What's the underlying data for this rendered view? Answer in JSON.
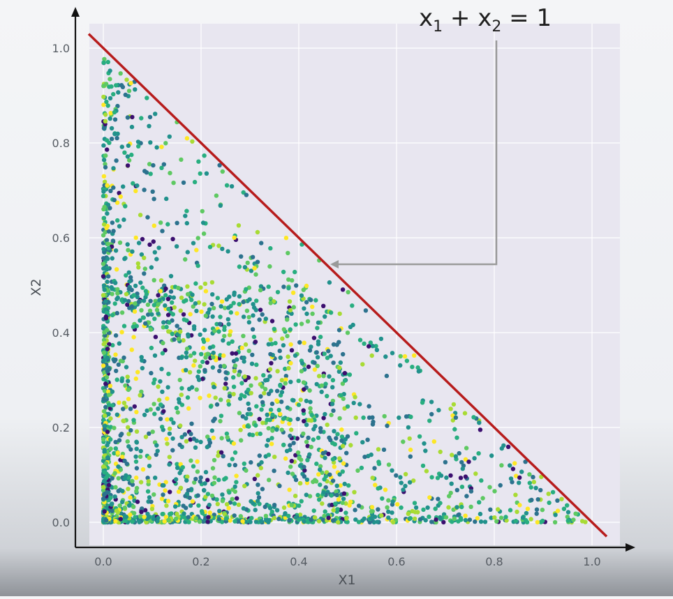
{
  "chart_data": {
    "type": "scatter",
    "title": "",
    "xlabel": "X1",
    "ylabel": "X2",
    "xlim": [
      -0.03,
      1.05
    ],
    "ylim": [
      -0.03,
      1.05
    ],
    "x_ticks": [
      "0.0",
      "0.2",
      "0.4",
      "0.6",
      "0.8",
      "1.0"
    ],
    "y_ticks": [
      "0.0",
      "0.2",
      "0.4",
      "0.6",
      "0.8",
      "1.0"
    ],
    "grid": true,
    "background_color": "#e8e6f0",
    "constraint_line": {
      "label_parts": [
        "x",
        "1",
        " + x",
        "2",
        " = 1"
      ],
      "from": [
        -0.03,
        1.03
      ],
      "to": [
        1.03,
        -0.03
      ],
      "color": "#b71c1c"
    },
    "annotation_points_to": [
      0.45,
      0.55
    ],
    "series": [
      {
        "description": "random points uniformly distributed under x1 + x2 <= 1, densest near axes",
        "point_count": 2600,
        "colormap": [
          "#3b0f6f",
          "#2c728e",
          "#21918c",
          "#28ae80",
          "#5ec962",
          "#a8db34",
          "#fde725"
        ]
      }
    ]
  }
}
